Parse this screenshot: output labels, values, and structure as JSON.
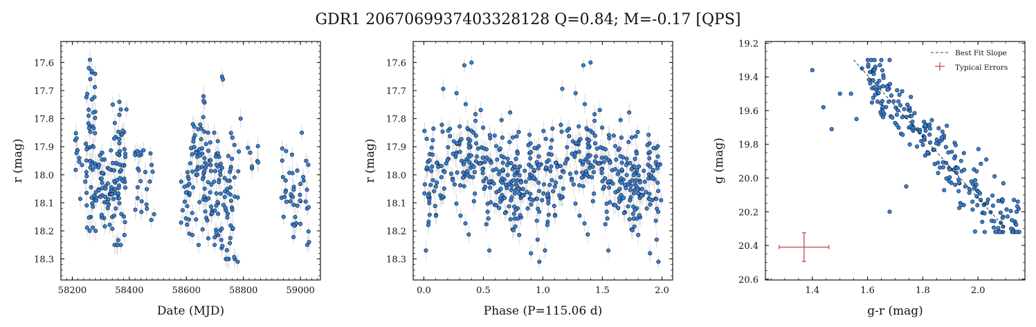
{
  "figure_title": "GDR1 2067069937403328128  Q=0.84; M=-0.17 [QPS]",
  "colors": {
    "points": "#3b82d6",
    "point_edge": "#10233f",
    "error_bars": "#d9d9d9",
    "typical_error": "#cd5c5c",
    "fit_line": "#000000"
  },
  "chart_data": [
    {
      "type": "scatter",
      "xlabel": "Date (MJD)",
      "ylabel": "r (mag)",
      "xlim": [
        58160,
        59070
      ],
      "ylim": [
        18.375,
        17.525
      ],
      "y_inverted": true,
      "xticks": [
        58200,
        58400,
        58600,
        58800,
        59000
      ],
      "yticks": [
        17.6,
        17.7,
        17.8,
        17.9,
        18.0,
        18.1,
        18.2,
        18.3
      ],
      "typical_yerr": 0.025,
      "clusters": [
        {
          "x": [
            58200,
            58240
          ],
          "y": [
            17.8,
            18.1
          ],
          "n": 10
        },
        {
          "x": [
            58245,
            58290
          ],
          "y": [
            17.6,
            18.2
          ],
          "n": 55
        },
        {
          "x": [
            58290,
            58340
          ],
          "y": [
            17.9,
            18.2
          ],
          "n": 45
        },
        {
          "x": [
            58340,
            58390
          ],
          "y": [
            17.75,
            18.25
          ],
          "n": 60
        },
        {
          "x": [
            58420,
            58450
          ],
          "y": [
            17.85,
            18.2
          ],
          "n": 15
        },
        {
          "x": [
            58455,
            58490
          ],
          "y": [
            17.9,
            18.2
          ],
          "n": 10
        },
        {
          "x": [
            58580,
            58620
          ],
          "y": [
            17.9,
            18.25
          ],
          "n": 20
        },
        {
          "x": [
            58620,
            58670
          ],
          "y": [
            17.7,
            18.25
          ],
          "n": 55
        },
        {
          "x": [
            58670,
            58720
          ],
          "y": [
            17.85,
            18.25
          ],
          "n": 45
        },
        {
          "x": [
            58720,
            58770
          ],
          "y": [
            17.85,
            18.3
          ],
          "n": 45
        },
        {
          "x": [
            58780,
            58860
          ],
          "y": [
            17.8,
            18.1
          ],
          "n": 10
        },
        {
          "x": [
            58930,
            58970
          ],
          "y": [
            17.85,
            18.15
          ],
          "n": 15
        },
        {
          "x": [
            58970,
            59030
          ],
          "y": [
            17.85,
            18.25
          ],
          "n": 30
        }
      ],
      "highlights": [
        {
          "x": 58262,
          "y": 17.59
        },
        {
          "x": 58258,
          "y": 17.62
        },
        {
          "x": 58268,
          "y": 17.63
        },
        {
          "x": 58280,
          "y": 17.64
        },
        {
          "x": 58725,
          "y": 17.65
        },
        {
          "x": 58365,
          "y": 17.74
        },
        {
          "x": 58660,
          "y": 17.72
        },
        {
          "x": 58728,
          "y": 17.66
        },
        {
          "x": 58780,
          "y": 18.31
        },
        {
          "x": 58370,
          "y": 18.25
        },
        {
          "x": 59030,
          "y": 18.24
        },
        {
          "x": 58610,
          "y": 18.21
        },
        {
          "x": 58215,
          "y": 17.87
        },
        {
          "x": 58830,
          "y": 17.97
        }
      ]
    },
    {
      "type": "scatter",
      "xlabel": "Phase (P=115.06 d)",
      "ylabel": "r (mag)",
      "xlim": [
        -0.09,
        2.09
      ],
      "ylim": [
        18.375,
        17.525
      ],
      "y_inverted": true,
      "xticks": [
        0.0,
        0.5,
        1.0,
        1.5,
        2.0
      ],
      "yticks": [
        17.6,
        17.7,
        17.8,
        17.9,
        18.0,
        18.1,
        18.2,
        18.3
      ],
      "typical_yerr": 0.025,
      "phase_model": {
        "mean": 18.0,
        "amplitude": 0.055,
        "min_phase": 0.35,
        "scatter": 0.085,
        "n_per_cycle": 300
      },
      "highlights": [
        {
          "x": 0.34,
          "y": 17.61
        },
        {
          "x": 1.34,
          "y": 17.61
        },
        {
          "x": 0.4,
          "y": 17.6
        },
        {
          "x": 1.4,
          "y": 17.6
        },
        {
          "x": 0.55,
          "y": 18.27
        },
        {
          "x": 1.55,
          "y": 18.27
        },
        {
          "x": 0.97,
          "y": 18.31
        },
        {
          "x": 1.97,
          "y": 18.31
        }
      ]
    },
    {
      "type": "scatter",
      "xlabel": "g-r (mag)",
      "ylabel": "g (mag)",
      "xlim": [
        1.23,
        2.17
      ],
      "ylim": [
        20.605,
        19.19
      ],
      "y_inverted": true,
      "xticks": [
        1.4,
        1.6,
        1.8,
        2.0
      ],
      "yticks": [
        19.2,
        19.4,
        19.6,
        19.8,
        20.0,
        20.2,
        20.4,
        20.6
      ],
      "legend_position": "upper right",
      "legend": [
        "Best Fit Slope",
        "Typical Errors"
      ],
      "best_fit": {
        "x": [
          1.55,
          2.1
        ],
        "y": [
          19.3,
          20.3
        ]
      },
      "typical_errors": {
        "x": 1.37,
        "y": 20.41,
        "xerr": 0.09,
        "yerr": 0.085
      },
      "cloud": {
        "x_range": [
          1.6,
          2.15
        ],
        "n": 240,
        "scatter": 0.09
      },
      "outliers": [
        {
          "x": 1.4,
          "y": 19.36
        },
        {
          "x": 1.44,
          "y": 19.58
        },
        {
          "x": 1.47,
          "y": 19.71
        },
        {
          "x": 1.5,
          "y": 19.5
        },
        {
          "x": 1.54,
          "y": 19.5
        },
        {
          "x": 1.56,
          "y": 19.65
        },
        {
          "x": 1.58,
          "y": 19.35
        },
        {
          "x": 1.62,
          "y": 19.42
        },
        {
          "x": 1.65,
          "y": 19.3
        },
        {
          "x": 1.68,
          "y": 19.3
        },
        {
          "x": 2.12,
          "y": 20.3
        },
        {
          "x": 2.14,
          "y": 20.2
        },
        {
          "x": 2.13,
          "y": 20.13
        },
        {
          "x": 2.09,
          "y": 20.13
        },
        {
          "x": 2.03,
          "y": 19.89
        },
        {
          "x": 2.06,
          "y": 19.99
        },
        {
          "x": 1.68,
          "y": 20.2
        },
        {
          "x": 1.74,
          "y": 20.05
        },
        {
          "x": 1.94,
          "y": 20.16
        },
        {
          "x": 2.01,
          "y": 20.13
        }
      ]
    }
  ]
}
